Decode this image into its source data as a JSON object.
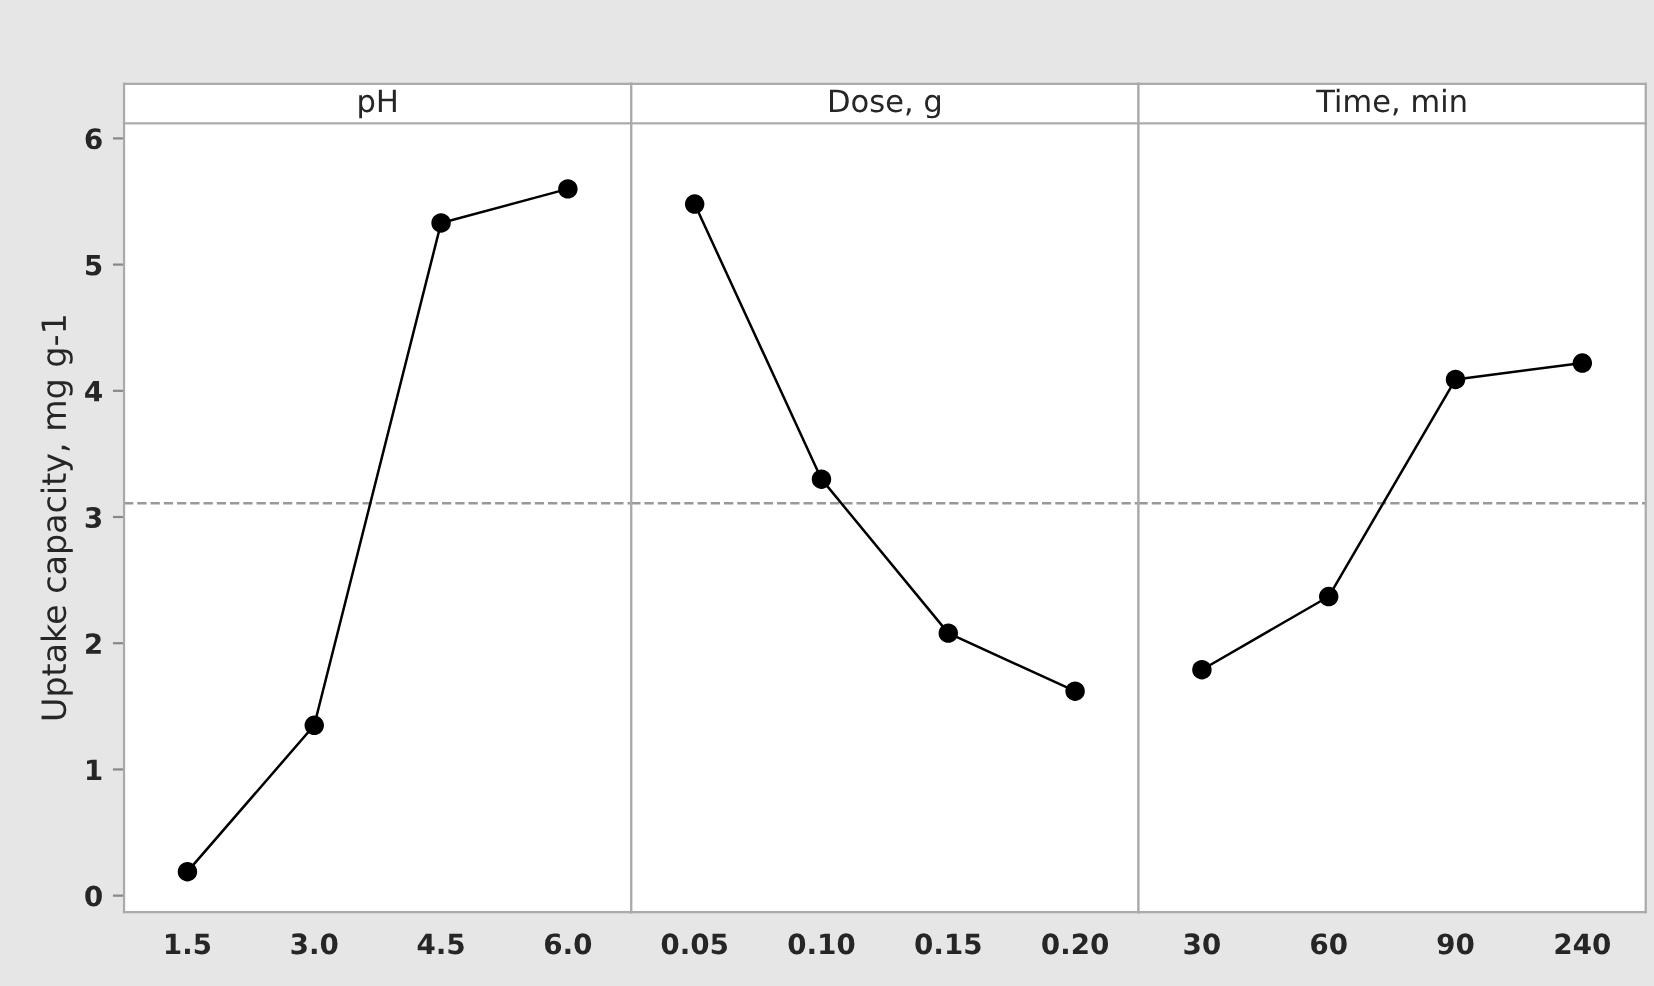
{
  "chart_data": [
    {
      "type": "line",
      "title": "pH",
      "ylabel": "Uptake capacity, mg g-1",
      "categories": [
        "1.5",
        "3.0",
        "4.5",
        "6.0"
      ],
      "series": [
        {
          "color": "#000000",
          "values": [
            0.19,
            1.35,
            5.33,
            5.6
          ]
        }
      ],
      "ylim": [
        -0.13,
        6.12
      ],
      "yticks": [
        0,
        1,
        2,
        3,
        4,
        5,
        6
      ],
      "marker": "circle",
      "line_style": "solid",
      "ref_lines": [
        {
          "axis": "y",
          "value": 3.11,
          "color": "#999999",
          "line_style": "dashed"
        }
      ]
    },
    {
      "type": "line",
      "title": "Dose, g",
      "categories": [
        "0.05",
        "0.10",
        "0.15",
        "0.20"
      ],
      "series": [
        {
          "color": "#000000",
          "values": [
            5.48,
            3.3,
            2.08,
            1.62
          ]
        }
      ],
      "ylim": [
        -0.13,
        6.12
      ],
      "tick_labels": "x",
      "marker": "circle",
      "line_style": "solid",
      "ref_lines": [
        {
          "axis": "y",
          "value": 3.11,
          "color": "#999999",
          "line_style": "dashed"
        }
      ]
    },
    {
      "type": "line",
      "title": "Time, min",
      "categories": [
        "30",
        "60",
        "90",
        "240"
      ],
      "series": [
        {
          "color": "#000000",
          "values": [
            1.79,
            2.37,
            4.09,
            4.22
          ]
        }
      ],
      "ylim": [
        -0.13,
        6.12
      ],
      "tick_labels": "x",
      "marker": "circle",
      "line_style": "solid",
      "ref_lines": [
        {
          "axis": "y",
          "value": 3.11,
          "color": "#999999",
          "line_style": "dashed"
        }
      ]
    }
  ]
}
